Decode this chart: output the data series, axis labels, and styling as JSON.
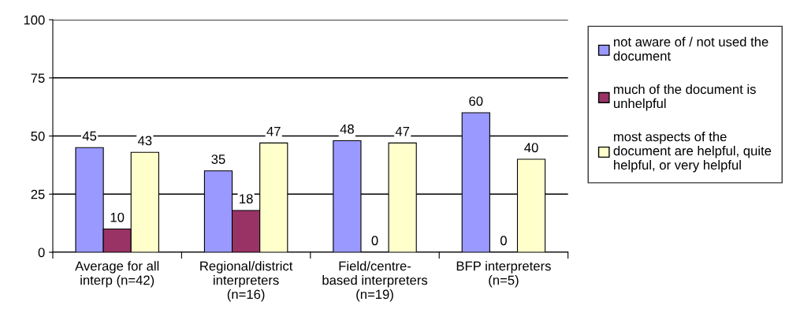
{
  "chart_data": {
    "type": "bar",
    "categories": [
      "Average for all\ninterp (n=42)",
      "Regional/district\ninterpreters\n(n=16)",
      "Field/centre-\nbased interpreters\n(n=19)",
      "BFP interpreters\n(n=5)"
    ],
    "series": [
      {
        "name": "not aware of / not used the\ndocument",
        "color": "#9999ff",
        "values": [
          45,
          35,
          48,
          60
        ]
      },
      {
        "name": "much of the document is\nunhelpful",
        "color": "#993366",
        "values": [
          10,
          18,
          0,
          0
        ]
      },
      {
        "name": "most aspects of the\ndocument are helpful, quite\nhelpful, or very helpful",
        "color": "#ffffcc",
        "values": [
          43,
          47,
          47,
          40
        ]
      }
    ],
    "ylim": [
      0,
      100
    ],
    "yticks": [
      0,
      25,
      50,
      75,
      100
    ],
    "grid": "y",
    "legend": "right",
    "data_labels": true
  }
}
